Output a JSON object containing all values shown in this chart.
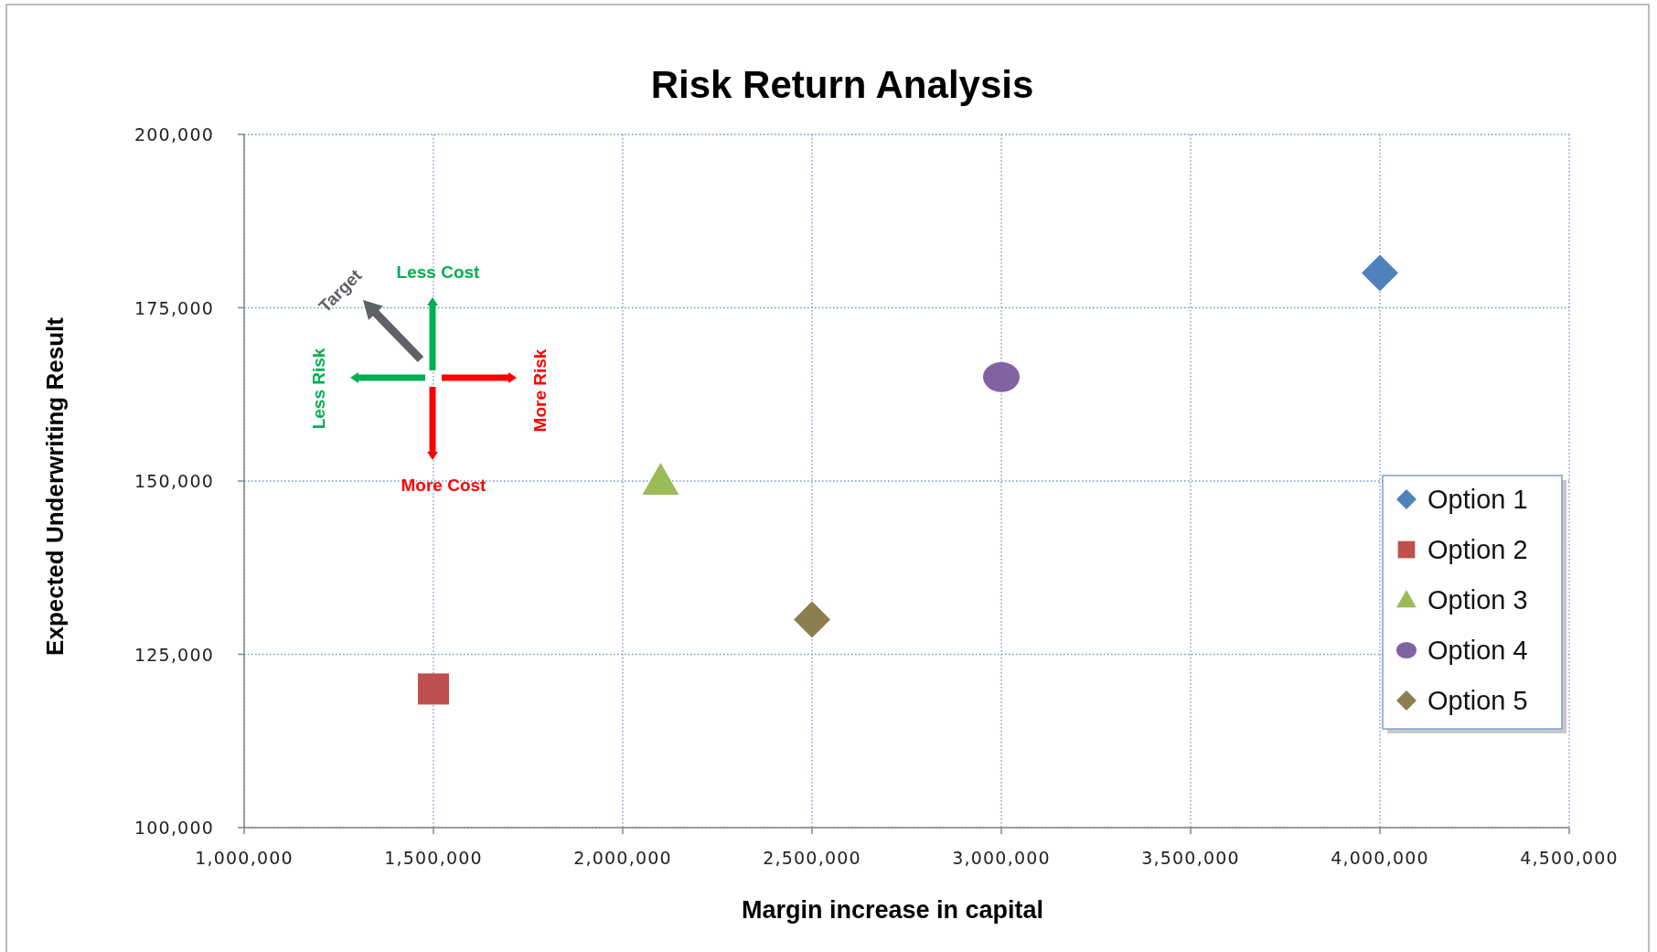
{
  "chart_data": {
    "type": "scatter",
    "title": "Risk Return Analysis",
    "xlabel": "Margin increase in capital",
    "ylabel": "Expected Underwriting Result",
    "annotations": [
      "Less Cost",
      "More Cost",
      "Less Risk",
      "More Risk",
      "Target"
    ],
    "series": [
      {
        "name": "Option 1",
        "color": "#4f81bd",
        "marker": "diamond",
        "x": [
          4000000
        ],
        "values": [
          180000
        ]
      },
      {
        "name": "Option 2",
        "color": "#c0504d",
        "marker": "square",
        "x": [
          1500000
        ],
        "values": [
          120000
        ]
      },
      {
        "name": "Option 3",
        "color": "#9bbb59",
        "marker": "triangle",
        "x": [
          2100000
        ],
        "values": [
          150000
        ]
      },
      {
        "name": "Option 4",
        "color": "#8064a2",
        "marker": "circle",
        "x": [
          3000000
        ],
        "values": [
          165000
        ]
      },
      {
        "name": "Option 5",
        "color": "#8c7f4f",
        "marker": "diamond",
        "x": [
          2500000
        ],
        "values": [
          130000
        ]
      }
    ],
    "xlim": [
      1000000,
      4500000
    ],
    "xticks": [
      {
        "value": 1000000,
        "label": "1,000,000"
      },
      {
        "value": 1500000,
        "label": "1,500,000"
      },
      {
        "value": 2000000,
        "label": "2,000,000"
      },
      {
        "value": 2500000,
        "label": "2,500,000"
      },
      {
        "value": 3000000,
        "label": "3,000,000"
      },
      {
        "value": 3500000,
        "label": "3,500,000"
      },
      {
        "value": 4000000,
        "label": "4,000,000"
      },
      {
        "value": 4500000,
        "label": "4,500,000"
      }
    ],
    "ylim": [
      100000,
      200000
    ],
    "yticks": [
      {
        "value": 100000,
        "label": "100,000"
      },
      {
        "value": 125000,
        "label": "125,000"
      },
      {
        "value": 150000,
        "label": "150,000"
      },
      {
        "value": 175000,
        "label": "175,000"
      },
      {
        "value": 200000,
        "label": "200,000"
      }
    ],
    "grid": true,
    "legend": "right"
  }
}
